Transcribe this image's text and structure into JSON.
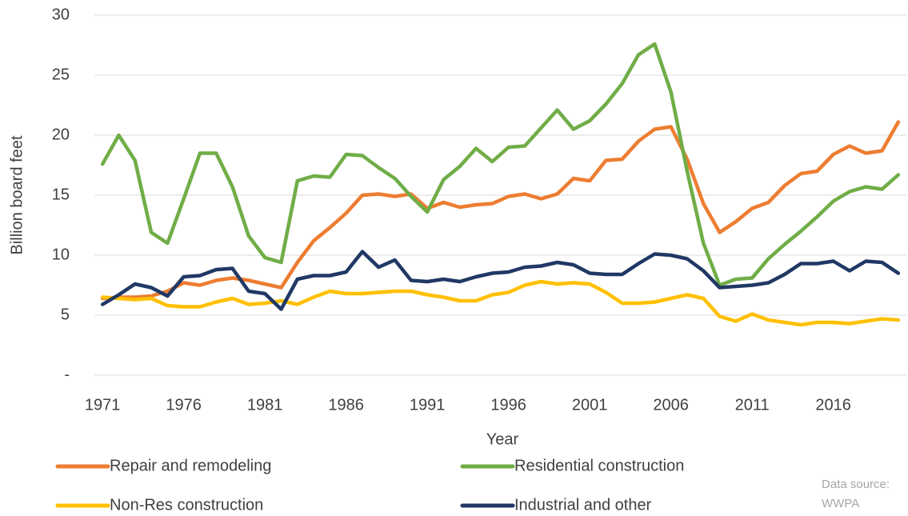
{
  "chart_data": {
    "type": "line",
    "y_label": "Billion board feet",
    "x_label": "Year",
    "source_label": "Data source:",
    "source": "WWPA",
    "x": [
      1971,
      1972,
      1973,
      1974,
      1975,
      1976,
      1977,
      1978,
      1979,
      1980,
      1981,
      1982,
      1983,
      1984,
      1985,
      1986,
      1987,
      1988,
      1989,
      1990,
      1991,
      1992,
      1993,
      1994,
      1995,
      1996,
      1997,
      1998,
      1999,
      2000,
      2001,
      2002,
      2003,
      2004,
      2005,
      2006,
      2007,
      2008,
      2009,
      2010,
      2011,
      2012,
      2013,
      2014,
      2015,
      2016,
      2017,
      2018,
      2019,
      2020
    ],
    "xlim": [
      1970.5,
      2020.5
    ],
    "xticks": [
      1971,
      1976,
      1981,
      1986,
      1991,
      1996,
      2001,
      2006,
      2011,
      2016
    ],
    "ylim": [
      0,
      30
    ],
    "yticks": [
      {
        "value": 0,
        "label": "-"
      },
      5,
      10,
      15,
      20,
      25,
      30
    ],
    "grid": true,
    "legend": "bottom",
    "series": [
      {
        "name": "Repair and remodeling",
        "color": "#ed7d31",
        "values": [
          6.4,
          6.5,
          6.5,
          6.6,
          7.0,
          7.7,
          7.5,
          7.9,
          8.1,
          7.9,
          7.6,
          7.3,
          9.4,
          11.2,
          12.3,
          13.5,
          15.0,
          15.1,
          14.9,
          15.1,
          13.9,
          14.4,
          14.0,
          14.2,
          14.3,
          14.9,
          15.1,
          14.7,
          15.1,
          16.4,
          16.2,
          17.9,
          18.0,
          19.5,
          20.5,
          20.7,
          18.0,
          14.3,
          11.9,
          12.8,
          13.9,
          14.4,
          15.8,
          16.8,
          17.0,
          18.4,
          19.1,
          18.5,
          18.7,
          21.1
        ]
      },
      {
        "name": "Residential construction",
        "color": "#70ad47",
        "values": [
          17.6,
          20.0,
          17.9,
          11.9,
          11.0,
          14.7,
          18.5,
          18.5,
          15.7,
          11.6,
          9.8,
          9.4,
          16.2,
          16.6,
          16.5,
          18.4,
          18.3,
          17.3,
          16.4,
          14.9,
          13.6,
          16.3,
          17.4,
          18.9,
          17.8,
          19.0,
          19.1,
          20.6,
          22.1,
          20.5,
          21.2,
          22.6,
          24.3,
          26.7,
          27.6,
          23.6,
          17.0,
          11.0,
          7.5,
          8.0,
          8.1,
          9.7,
          10.9,
          12.0,
          13.2,
          14.5,
          15.3,
          15.7,
          15.5,
          16.7
        ]
      },
      {
        "name": "Non-Res construction",
        "color": "#ffc000",
        "values": [
          6.5,
          6.4,
          6.3,
          6.4,
          5.8,
          5.7,
          5.7,
          6.1,
          6.4,
          5.9,
          6.0,
          6.2,
          5.9,
          6.5,
          7.0,
          6.8,
          6.8,
          6.9,
          7.0,
          7.0,
          6.7,
          6.5,
          6.2,
          6.2,
          6.7,
          6.9,
          7.5,
          7.8,
          7.6,
          7.7,
          7.6,
          6.9,
          6.0,
          6.0,
          6.1,
          6.4,
          6.7,
          6.4,
          4.9,
          4.5,
          5.1,
          4.6,
          4.4,
          4.2,
          4.4,
          4.4,
          4.3,
          4.5,
          4.7,
          4.6
        ]
      },
      {
        "name": "Industrial and other",
        "color": "#203864",
        "values": [
          5.9,
          6.7,
          7.6,
          7.3,
          6.6,
          8.2,
          8.3,
          8.8,
          8.9,
          7.0,
          6.8,
          5.5,
          8.0,
          8.3,
          8.3,
          8.6,
          10.3,
          9.0,
          9.6,
          7.9,
          7.8,
          8.0,
          7.8,
          8.2,
          8.5,
          8.6,
          9.0,
          9.1,
          9.4,
          9.2,
          8.5,
          8.4,
          8.4,
          9.3,
          10.1,
          10.0,
          9.7,
          8.7,
          7.3,
          7.4,
          7.5,
          7.7,
          8.4,
          9.3,
          9.3,
          9.5,
          8.7,
          9.5,
          9.4,
          8.5
        ]
      }
    ]
  }
}
